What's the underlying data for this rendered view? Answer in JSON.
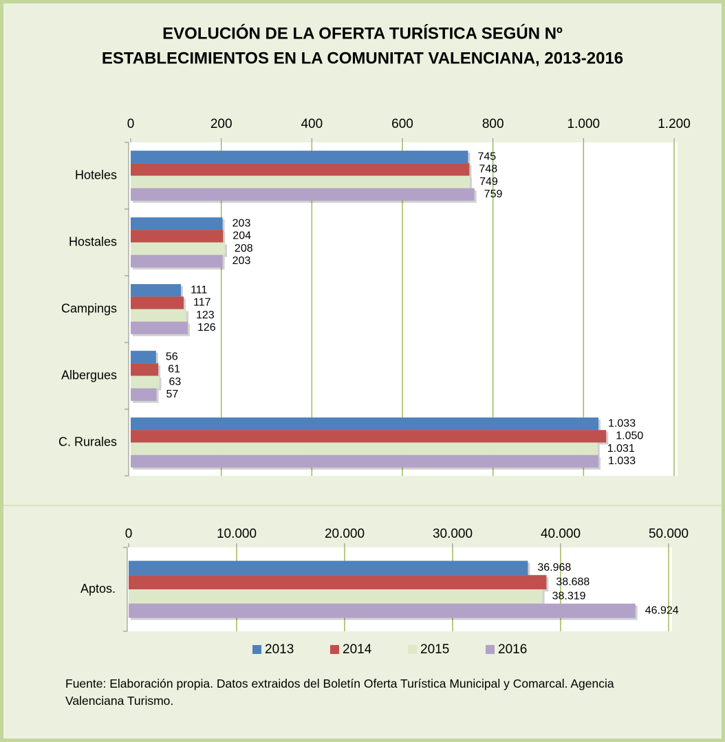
{
  "chart_data": [
    {
      "type": "bar",
      "orientation": "horizontal",
      "title": [
        "EVOLUCIÓN DE LA OFERTA TURÍSTICA SEGÚN Nº",
        "ESTABLECIMIENTOS EN LA COMUNITAT VALENCIANA, 2013-2016"
      ],
      "categories": [
        "Hoteles",
        "Hostales",
        "Campings",
        "Albergues",
        "C. Rurales"
      ],
      "series": [
        {
          "name": "2013",
          "color": "#4f81bd",
          "values": [
            745,
            203,
            111,
            56,
            1033
          ],
          "value_labels": [
            "745",
            "203",
            "111",
            "56",
            "1.033"
          ]
        },
        {
          "name": "2014",
          "color": "#c0504d",
          "values": [
            748,
            204,
            117,
            61,
            1050
          ],
          "value_labels": [
            "748",
            "204",
            "117",
            "61",
            "1.050"
          ]
        },
        {
          "name": "2015",
          "color": "#dde8c8",
          "values": [
            749,
            208,
            123,
            63,
            1031
          ],
          "value_labels": [
            "749",
            "208",
            "123",
            "63",
            "1.031"
          ]
        },
        {
          "name": "2016",
          "color": "#b3a2c7",
          "values": [
            759,
            203,
            126,
            57,
            1033
          ],
          "value_labels": [
            "759",
            "203",
            "126",
            "57",
            "1.033"
          ]
        }
      ],
      "xlim": [
        0,
        1200
      ],
      "xticks": [
        0,
        200,
        400,
        600,
        800,
        {
          "value": 1000,
          "label": "1.000"
        },
        {
          "value": 1200,
          "label": "1.200"
        }
      ],
      "grid": true,
      "grid_color": "#9bbb59"
    },
    {
      "type": "bar",
      "orientation": "horizontal",
      "categories": [
        "Aptos."
      ],
      "series": [
        {
          "color": "#4f81bd",
          "values": [
            36968
          ],
          "value_labels": [
            "36.968"
          ]
        },
        {
          "color": "#c0504d",
          "values": [
            38688
          ],
          "value_labels": [
            "38.688"
          ]
        },
        {
          "color": "#dde8c8",
          "values": [
            38319
          ],
          "value_labels": [
            "38.319"
          ]
        },
        {
          "color": "#b3a2c7",
          "values": [
            46924
          ],
          "value_labels": [
            "46.924"
          ]
        }
      ],
      "xlim": [
        0,
        50000
      ],
      "xticks": [
        0,
        {
          "value": 10000,
          "label": "10.000"
        },
        {
          "value": 20000,
          "label": "20.000"
        },
        {
          "value": 30000,
          "label": "30.000"
        },
        {
          "value": 40000,
          "label": "40.000"
        },
        {
          "value": 50000,
          "label": "50.000"
        }
      ],
      "grid": true,
      "grid_color": "#9bbb59"
    }
  ],
  "source": "Fuente:  Elaboración propia. Datos extraidos del Boletín Oferta Turística Municipal y Comarcal. Agencia Valenciana Turismo."
}
